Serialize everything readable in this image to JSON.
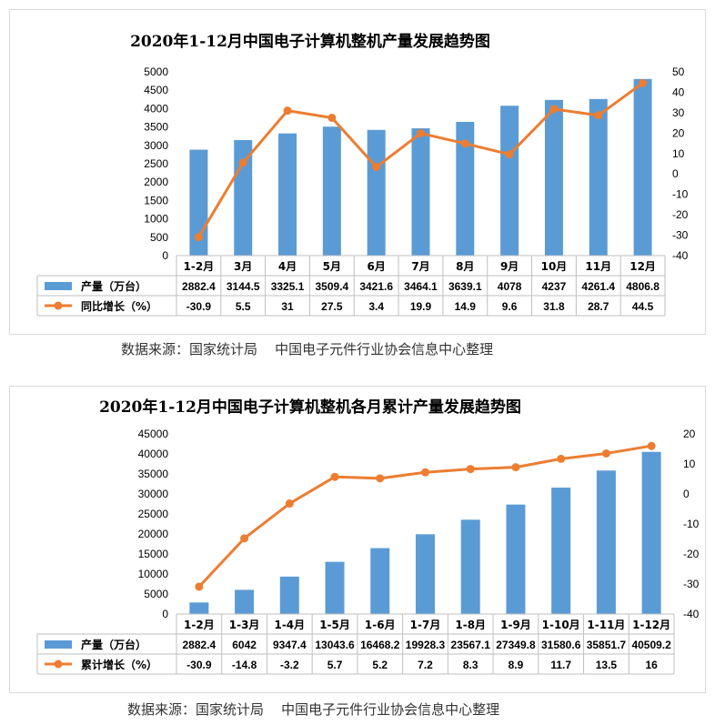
{
  "charts": [
    {
      "title": "2020年1-12月中国电子计算机整机产量发展趋势图",
      "source": "数据来源：国家统计局    中国电子元件行业协会信息中心整理",
      "chart_data": {
        "type": "bar",
        "categories": [
          "1-2月",
          "3月",
          "4月",
          "5月",
          "6月",
          "7月",
          "8月",
          "9月",
          "10月",
          "11月",
          "12月"
        ],
        "series": [
          {
            "name": "产量（万台）",
            "type": "bar",
            "axis": "left",
            "color": "#5B9BD5",
            "values": [
              2882.4,
              3144.5,
              3325.1,
              3509.4,
              3421.6,
              3464.1,
              3639.1,
              4078,
              4237,
              4261.4,
              4806.8
            ],
            "labels": [
              "2882.4",
              "3144.5",
              "3325.1",
              "3509.4",
              "3421.6",
              "3464.1",
              "3639.1",
              "4078",
              "4237",
              "4261.4",
              "4806.8"
            ]
          },
          {
            "name": "同比增长（%）",
            "type": "line",
            "axis": "right",
            "color": "#ED7D31",
            "values": [
              -30.9,
              5.5,
              31,
              27.5,
              3.4,
              19.9,
              14.9,
              9.6,
              31.8,
              28.7,
              44.5
            ],
            "labels": [
              "-30.9",
              "5.5",
              "31",
              "27.5",
              "3.4",
              "19.9",
              "14.9",
              "9.6",
              "31.8",
              "28.7",
              "44.5"
            ]
          }
        ],
        "y_left": {
          "min": 0,
          "max": 5000,
          "step": 500,
          "ticks": [
            "0",
            "500",
            "1000",
            "1500",
            "2000",
            "2500",
            "3000",
            "3500",
            "4000",
            "4500",
            "5000"
          ]
        },
        "y_right": {
          "min": -40,
          "max": 50,
          "step": 10,
          "ticks": [
            "-40",
            "-30",
            "-20",
            "-10",
            "0",
            "10",
            "20",
            "30",
            "40",
            "50"
          ]
        },
        "grid": false,
        "legend": "data-table"
      }
    },
    {
      "title": "2020年1-12月中国电子计算机整机各月累计产量发展趋势图",
      "source": "数据来源：国家统计局    中国电子元件行业协会信息中心整理",
      "chart_data": {
        "type": "bar",
        "categories": [
          "1-2月",
          "1-3月",
          "1-4月",
          "1-5月",
          "1-6月",
          "1-7月",
          "1-8月",
          "1-9月",
          "1-10月",
          "1-11月",
          "1-12月"
        ],
        "series": [
          {
            "name": "产量（万台）",
            "type": "bar",
            "axis": "left",
            "color": "#5B9BD5",
            "values": [
              2882.4,
              6042,
              9347.4,
              13043.6,
              16468.2,
              19928.3,
              23567.1,
              27349.8,
              31580.6,
              35851.7,
              40509.2
            ],
            "labels": [
              "2882.4",
              "6042",
              "9347.4",
              "13043.6",
              "16468.2",
              "19928.3",
              "23567.1",
              "27349.8",
              "31580.6",
              "35851.7",
              "40509.2"
            ]
          },
          {
            "name": "累计增长（%）",
            "type": "line",
            "axis": "right",
            "color": "#ED7D31",
            "values": [
              -30.9,
              -14.8,
              -3.2,
              5.7,
              5.2,
              7.2,
              8.3,
              8.9,
              11.7,
              13.5,
              16
            ],
            "labels": [
              "-30.9",
              "-14.8",
              "-3.2",
              "5.7",
              "5.2",
              "7.2",
              "8.3",
              "8.9",
              "11.7",
              "13.5",
              "16"
            ]
          }
        ],
        "y_left": {
          "min": 0,
          "max": 45000,
          "step": 5000,
          "ticks": [
            "0",
            "5000",
            "10000",
            "15000",
            "20000",
            "25000",
            "30000",
            "35000",
            "40000",
            "45000"
          ]
        },
        "y_right": {
          "min": -40,
          "max": 20,
          "step": 10,
          "ticks": [
            "-40",
            "-30",
            "-20",
            "-10",
            "0",
            "10",
            "20"
          ]
        },
        "grid": false,
        "legend": "data-table"
      }
    }
  ]
}
